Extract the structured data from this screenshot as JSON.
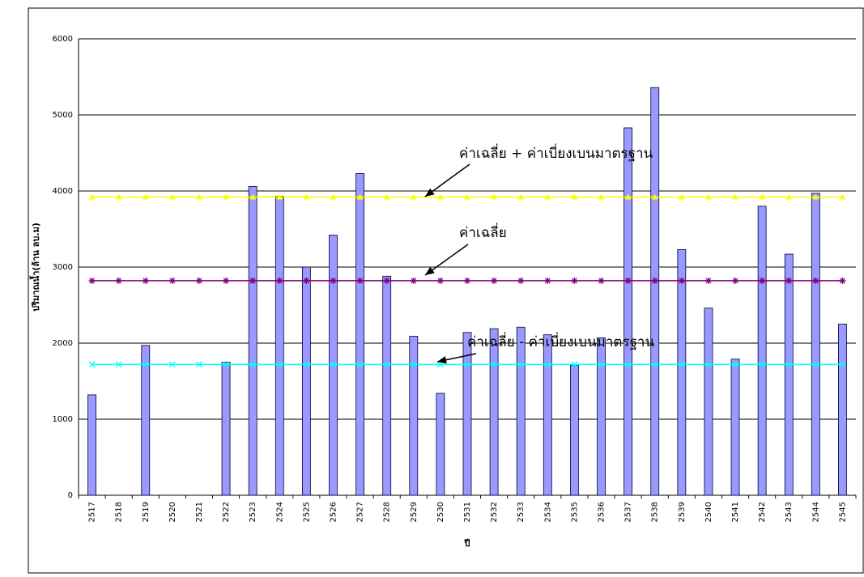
{
  "chart_data": {
    "type": "bar",
    "y_label": "ปริมาณน้ำ(ล้าน ลบ.ม)",
    "x_label": "ปี",
    "categories": [
      "2517",
      "2518",
      "2519",
      "2520",
      "2521",
      "2522",
      "2523",
      "2524",
      "2525",
      "2526",
      "2527",
      "2528",
      "2529",
      "2530",
      "2531",
      "2532",
      "2533",
      "2534",
      "2535",
      "2536",
      "2537",
      "2538",
      "2539",
      "2540",
      "2541",
      "2542",
      "2543",
      "2544",
      "2545"
    ],
    "series": [
      {
        "type": "bar",
        "color": "#9999ff",
        "values": [
          1320,
          null,
          1970,
          null,
          null,
          1750,
          4060,
          3930,
          3000,
          3420,
          4230,
          2880,
          2090,
          1340,
          2140,
          2190,
          2210,
          2110,
          1710,
          2070,
          4830,
          5360,
          3230,
          2460,
          1790,
          3800,
          3170,
          3970,
          2250
        ]
      },
      {
        "type": "line",
        "marker": "triangle",
        "color": "#ffff00",
        "values": [
          3920,
          3920,
          3920,
          3920,
          3920,
          3920,
          3920,
          3920,
          3920,
          3920,
          3920,
          3920,
          3920,
          3920,
          3920,
          3920,
          3920,
          3920,
          3920,
          3920,
          3920,
          3920,
          3920,
          3920,
          3920,
          3920,
          3920,
          3920,
          3920
        ]
      },
      {
        "type": "line",
        "marker": "star",
        "color": "#800080",
        "values": [
          2820,
          2820,
          2820,
          2820,
          2820,
          2820,
          2820,
          2820,
          2820,
          2820,
          2820,
          2820,
          2820,
          2820,
          2820,
          2820,
          2820,
          2820,
          2820,
          2820,
          2820,
          2820,
          2820,
          2820,
          2820,
          2820,
          2820,
          2820,
          2820
        ]
      },
      {
        "type": "line",
        "marker": "cross",
        "color": "#00ffff",
        "values": [
          1720,
          1720,
          1720,
          1720,
          1720,
          1720,
          1720,
          1720,
          1720,
          1720,
          1720,
          1720,
          1720,
          1720,
          1720,
          1720,
          1720,
          1720,
          1720,
          1720,
          1720,
          1720,
          1720,
          1720,
          1720,
          1720,
          1720,
          1720,
          1720
        ]
      }
    ],
    "annotations": [
      "ค่าเฉลี่ย + ค่าเบี่ยงเบนมาตรฐาน",
      "ค่าเฉลี่ย",
      "ค่าเฉลี่ย -  ค่าเบี่ยงเบนมาตรฐาน"
    ],
    "ylim": [
      0,
      6000
    ],
    "yticks": [
      0,
      1000,
      2000,
      3000,
      4000,
      5000,
      6000
    ],
    "grid": true
  }
}
